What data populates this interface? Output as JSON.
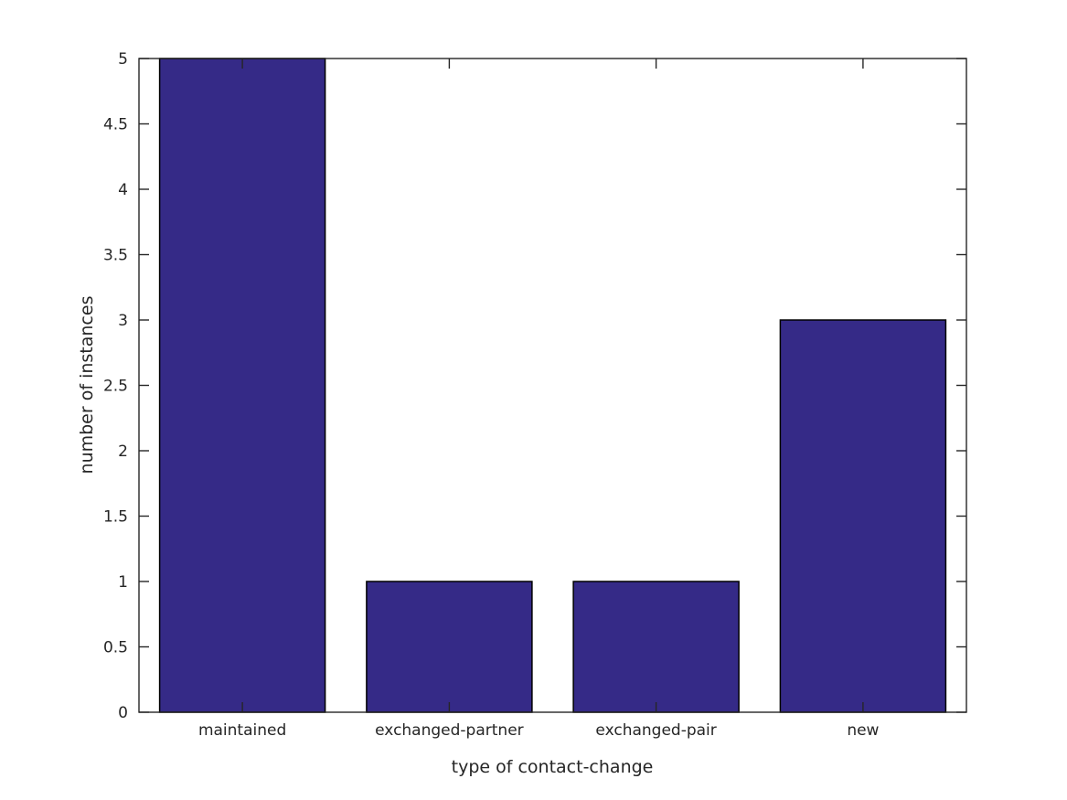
{
  "figure": {
    "background": "#ffffff",
    "frame_color": "#262626",
    "text_color": "#262626"
  },
  "chart_data": {
    "type": "bar",
    "title": "",
    "xlabel": "type of contact-change",
    "ylabel": "number of instances",
    "categories": [
      "maintained",
      "exchanged-partner",
      "exchanged-pair",
      "new"
    ],
    "values": [
      5,
      1,
      1,
      3
    ],
    "ylim": [
      0,
      5
    ],
    "yticks": [
      0,
      0.5,
      1,
      1.5,
      2,
      2.5,
      3,
      3.5,
      4,
      4.5,
      5
    ],
    "ytick_labels": [
      "0",
      "0.5",
      "1",
      "1.5",
      "2",
      "2.5",
      "3",
      "3.5",
      "4",
      "4.5",
      "5"
    ],
    "bar_color": "#352A87",
    "bar_edge_color": "#000000",
    "bar_width_fraction": 0.8,
    "grid": false,
    "legend": null,
    "box": true,
    "tick_direction": "in"
  }
}
